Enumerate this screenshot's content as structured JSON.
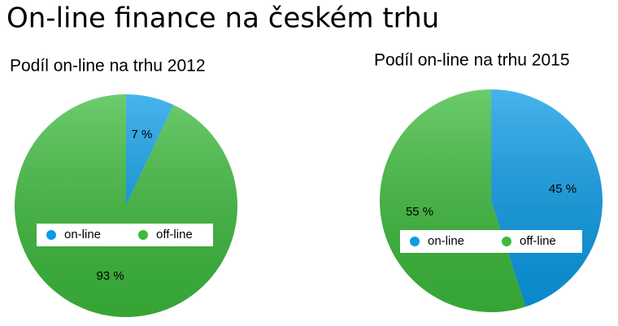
{
  "title": "On-line finance na českém trhu",
  "chart_data": [
    {
      "type": "pie",
      "title": "Podíl on-line na trhu 2012",
      "categories": [
        "on-line",
        "off-line"
      ],
      "values": [
        7,
        93
      ],
      "value_labels": [
        "7 %",
        "93 %"
      ],
      "colors": [
        "#0a9be6",
        "#3cbb3c"
      ],
      "legend": "center"
    },
    {
      "type": "pie",
      "title": "Podíl on-line na trhu 2015",
      "categories": [
        "on-line",
        "off-line"
      ],
      "values": [
        45,
        55
      ],
      "value_labels": [
        "45 %",
        "55 %"
      ],
      "colors": [
        "#0a9be6",
        "#3cbb3c"
      ],
      "legend": "center"
    }
  ]
}
